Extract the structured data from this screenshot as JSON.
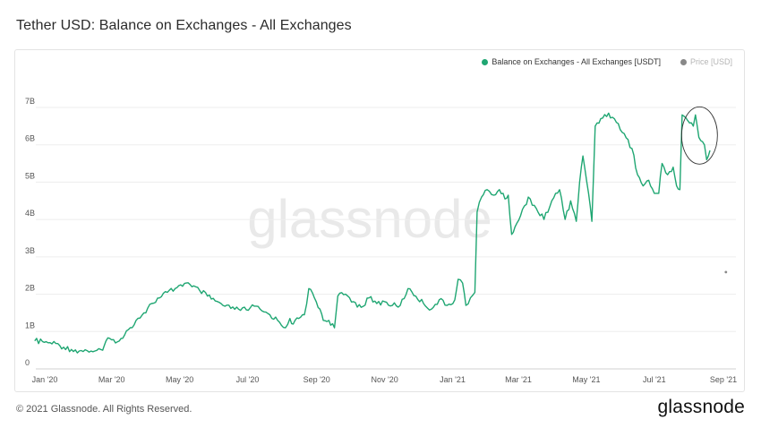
{
  "header": {
    "title": "Tether USD: Balance on Exchanges - All Exchanges"
  },
  "legend": {
    "items": [
      {
        "label": "Balance on Exchanges - All Exchanges [USDT]",
        "color": "#1fa672"
      },
      {
        "label": "Price [USD]",
        "color": "#888888"
      }
    ]
  },
  "watermark": "glassnode",
  "footer": {
    "copyright": "© 2021 Glassnode. All Rights Reserved.",
    "logo": "glassnode"
  },
  "chart_data": {
    "type": "line",
    "title": "Tether USD: Balance on Exchanges - All Exchanges",
    "x_tick_labels": [
      "Jan '20",
      "Mar '20",
      "May '20",
      "Jul '20",
      "Sep '20",
      "Nov '20",
      "Jan '21",
      "Mar '21",
      "May '21",
      "Jul '21",
      "Sep '21"
    ],
    "y_tick_labels": [
      "0",
      "1B",
      "2B",
      "3B",
      "4B",
      "5B",
      "6B",
      "7B"
    ],
    "ylim": [
      0,
      7000000000
    ],
    "grid": "horizontal",
    "legend_position": "top-right",
    "series": [
      {
        "name": "Balance on Exchanges - All Exchanges [USDT]",
        "color": "#1fa672",
        "points": [
          [
            "2019-12-31",
            0.75
          ],
          [
            "2020-01-07",
            0.73
          ],
          [
            "2020-01-12",
            0.7
          ],
          [
            "2020-01-19",
            0.68
          ],
          [
            "2020-01-26",
            0.58
          ],
          [
            "2020-02-02",
            0.52
          ],
          [
            "2020-02-09",
            0.48
          ],
          [
            "2020-02-16",
            0.49
          ],
          [
            "2020-02-23",
            0.48
          ],
          [
            "2020-03-01",
            0.5
          ],
          [
            "2020-03-04",
            0.75
          ],
          [
            "2020-03-09",
            0.78
          ],
          [
            "2020-03-16",
            0.75
          ],
          [
            "2020-03-19",
            0.82
          ],
          [
            "2020-03-24",
            1.05
          ],
          [
            "2020-03-31",
            1.3
          ],
          [
            "2020-04-07",
            1.5
          ],
          [
            "2020-04-14",
            1.75
          ],
          [
            "2020-04-21",
            1.9
          ],
          [
            "2020-04-28",
            2.05
          ],
          [
            "2020-05-05",
            2.15
          ],
          [
            "2020-05-10",
            2.25
          ],
          [
            "2020-05-15",
            2.3
          ],
          [
            "2020-05-20",
            2.2
          ],
          [
            "2020-05-27",
            2.1
          ],
          [
            "2020-06-03",
            1.95
          ],
          [
            "2020-06-10",
            1.82
          ],
          [
            "2020-06-17",
            1.7
          ],
          [
            "2020-06-24",
            1.62
          ],
          [
            "2020-07-01",
            1.6
          ],
          [
            "2020-07-08",
            1.58
          ],
          [
            "2020-07-15",
            1.68
          ],
          [
            "2020-07-22",
            1.55
          ],
          [
            "2020-07-29",
            1.45
          ],
          [
            "2020-08-05",
            1.3
          ],
          [
            "2020-08-12",
            1.1
          ],
          [
            "2020-08-16",
            1.35
          ],
          [
            "2020-08-19",
            1.2
          ],
          [
            "2020-08-24",
            1.35
          ],
          [
            "2020-08-29",
            1.45
          ],
          [
            "2020-09-02",
            2.15
          ],
          [
            "2020-09-07",
            1.9
          ],
          [
            "2020-09-12",
            1.6
          ],
          [
            "2020-09-15",
            1.3
          ],
          [
            "2020-09-20",
            1.3
          ],
          [
            "2020-09-25",
            1.1
          ],
          [
            "2020-09-28",
            1.95
          ],
          [
            "2020-10-05",
            2.0
          ],
          [
            "2020-10-12",
            1.8
          ],
          [
            "2020-10-19",
            1.65
          ],
          [
            "2020-10-26",
            1.9
          ],
          [
            "2020-11-02",
            1.75
          ],
          [
            "2020-11-09",
            1.8
          ],
          [
            "2020-11-16",
            1.7
          ],
          [
            "2020-11-23",
            1.7
          ],
          [
            "2020-11-30",
            2.15
          ],
          [
            "2020-12-07",
            1.95
          ],
          [
            "2020-12-14",
            1.75
          ],
          [
            "2020-12-21",
            1.6
          ],
          [
            "2020-12-28",
            1.85
          ],
          [
            "2021-01-04",
            1.7
          ],
          [
            "2021-01-11",
            1.85
          ],
          [
            "2021-01-14",
            2.4
          ],
          [
            "2021-01-18",
            2.3
          ],
          [
            "2021-01-21",
            1.7
          ],
          [
            "2021-01-25",
            1.9
          ],
          [
            "2021-01-29",
            2.05
          ],
          [
            "2021-01-31",
            4.2
          ],
          [
            "2021-02-04",
            4.6
          ],
          [
            "2021-02-09",
            4.8
          ],
          [
            "2021-02-15",
            4.65
          ],
          [
            "2021-02-20",
            4.8
          ],
          [
            "2021-02-25",
            4.55
          ],
          [
            "2021-02-28",
            4.65
          ],
          [
            "2021-03-03",
            3.6
          ],
          [
            "2021-03-06",
            3.8
          ],
          [
            "2021-03-11",
            4.1
          ],
          [
            "2021-03-18",
            4.6
          ],
          [
            "2021-03-25",
            4.3
          ],
          [
            "2021-04-01",
            4.0
          ],
          [
            "2021-04-08",
            4.5
          ],
          [
            "2021-04-15",
            4.8
          ],
          [
            "2021-04-20",
            4.0
          ],
          [
            "2021-04-25",
            4.5
          ],
          [
            "2021-04-30",
            3.95
          ],
          [
            "2021-05-03",
            5.0
          ],
          [
            "2021-05-06",
            5.7
          ],
          [
            "2021-05-11",
            4.7
          ],
          [
            "2021-05-14",
            3.95
          ],
          [
            "2021-05-17",
            6.5
          ],
          [
            "2021-05-22",
            6.7
          ],
          [
            "2021-05-29",
            6.85
          ],
          [
            "2021-06-05",
            6.6
          ],
          [
            "2021-06-12",
            6.3
          ],
          [
            "2021-06-19",
            5.9
          ],
          [
            "2021-06-24",
            5.2
          ],
          [
            "2021-06-29",
            4.9
          ],
          [
            "2021-07-04",
            5.05
          ],
          [
            "2021-07-09",
            4.7
          ],
          [
            "2021-07-13",
            4.7
          ],
          [
            "2021-07-16",
            5.5
          ],
          [
            "2021-07-21",
            5.2
          ],
          [
            "2021-07-26",
            5.4
          ],
          [
            "2021-07-29",
            4.9
          ],
          [
            "2021-08-01",
            4.8
          ],
          [
            "2021-08-03",
            6.8
          ],
          [
            "2021-08-08",
            6.65
          ],
          [
            "2021-08-13",
            6.5
          ],
          [
            "2021-08-15",
            6.8
          ],
          [
            "2021-08-18",
            6.2
          ],
          [
            "2021-08-23",
            6.0
          ],
          [
            "2021-08-25",
            5.6
          ],
          [
            "2021-08-28",
            5.85
          ]
        ]
      },
      {
        "name": "Price [USD]",
        "color": "#888888",
        "points": [
          [
            "2021-08-23",
            2.4
          ]
        ]
      }
    ],
    "annotations": [
      "circle highlighting the decline at the end of Aug '21"
    ]
  }
}
